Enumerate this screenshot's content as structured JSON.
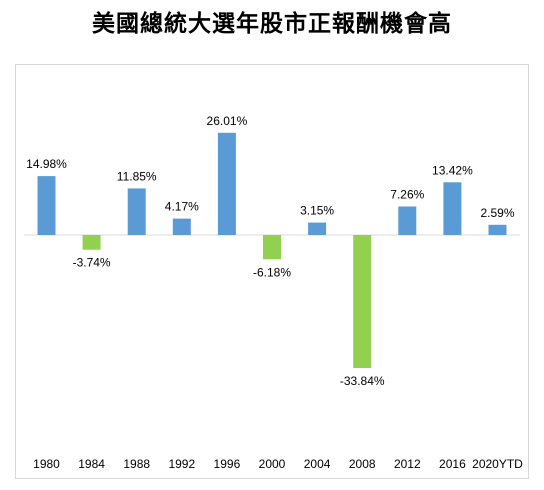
{
  "title": "美國總統大選年股市正報酬機會高",
  "chart_data": {
    "type": "bar",
    "title": "美國總統大選年股市正報酬機會高",
    "categories": [
      "1980",
      "1984",
      "1988",
      "1992",
      "1996",
      "2000",
      "2004",
      "2008",
      "2012",
      "2016",
      "2020YTD"
    ],
    "values": [
      14.98,
      -3.74,
      11.85,
      4.17,
      26.01,
      -6.18,
      3.15,
      -33.84,
      7.26,
      13.42,
      2.59
    ],
    "data_labels": [
      "14.98%",
      "-3.74%",
      "11.85%",
      "4.17%",
      "26.01%",
      "-6.18%",
      "3.15%",
      "-33.84%",
      "7.26%",
      "13.42%",
      "2.59%"
    ],
    "unit": "%",
    "xlabel": "",
    "ylabel": "",
    "ylim": [
      -33.84,
      26.01
    ],
    "grid": false,
    "legend": "none",
    "colors": {
      "positive": "#5b9bd5",
      "negative": "#92d050",
      "axis": "#d9d9d9"
    }
  }
}
